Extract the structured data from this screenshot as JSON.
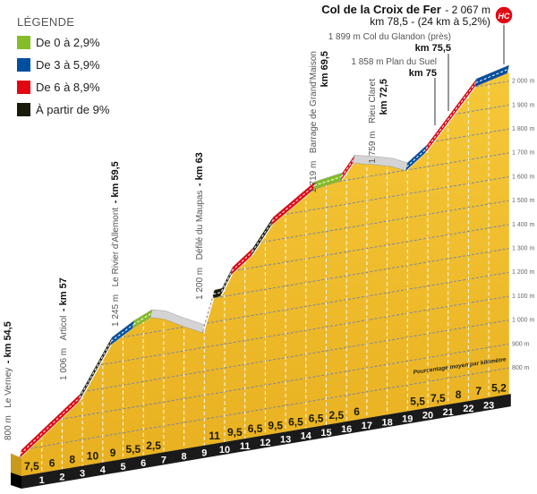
{
  "legend": {
    "title": "LÉGENDE",
    "items": [
      {
        "label": "De 0 à 2,9%",
        "color": "#84bd29"
      },
      {
        "label": "De 3 à 5,9%",
        "color": "#004f9f"
      },
      {
        "label": "De 6 à 8,9%",
        "color": "#e30613"
      },
      {
        "label": "À partir de 9%",
        "color": "#1a1a0a"
      }
    ]
  },
  "summit": {
    "name": "Col de la Croix de Fer",
    "altitude": " - 2 067 m",
    "detail": "km 78,5 - (24 km à 5,2%)",
    "category": "HC",
    "category_color": "#e30613"
  },
  "annotations": {
    "le_verney": {
      "alt": "800 m",
      "name": "Le Verney",
      "sep": " - ",
      "km": "km 54,5"
    },
    "articol": {
      "alt": "1 006 m",
      "name": "Articol",
      "sep": " - ",
      "km": "km 57"
    },
    "rivier": {
      "alt": "1 245 m",
      "name": "Le Rivier d'Allemont",
      "sep": " - ",
      "km": "km 59,5"
    },
    "maupas": {
      "alt": "1 200 m",
      "name": "Défilé du Maupas",
      "sep": " - ",
      "km": "km 63"
    },
    "grandmaison": {
      "alt": "1 719 m",
      "name": "Barrage de Grand'Maison",
      "km": "km 69,5"
    },
    "rieu_claret": {
      "alt": "1 759 m",
      "name": "Rieu Claret",
      "km": "km 72,5"
    },
    "plan_du_suel": {
      "text": "1 858 m Plan du Suel",
      "km": "km 75"
    },
    "glandon": {
      "text": "1 899 m Col du Glandon (près)",
      "km": "km 75,5"
    }
  },
  "footnote": "Pourcentage moyen par kilomètre",
  "chart_data": {
    "type": "area",
    "xlabel": "",
    "ylabel": "",
    "x_ticks": [
      "1",
      "2",
      "3",
      "4",
      "5",
      "6",
      "7",
      "8",
      "9",
      "10",
      "11",
      "12",
      "13",
      "14",
      "15",
      "16",
      "17",
      "18",
      "19",
      "20",
      "21",
      "22",
      "23"
    ],
    "altitude_ticks": [
      "800 m",
      "900 m",
      "1 000 m",
      "1 100 m",
      "1 200 m",
      "1 300 m",
      "1 400 m",
      "1 500 m",
      "1 600 m",
      "1 700 m",
      "1 800 m",
      "1 900 m",
      "2 000 m"
    ],
    "altitude_tick_values": [
      800,
      900,
      1000,
      1100,
      1200,
      1300,
      1400,
      1500,
      1600,
      1700,
      1800,
      1900,
      2000
    ],
    "km_range": [
      0,
      24
    ],
    "profile": [
      [
        0,
        800
      ],
      [
        2.9,
        993
      ],
      [
        4.45,
        1207
      ],
      [
        5.55,
        1262
      ],
      [
        6.43,
        1295
      ],
      [
        7.1,
        1280
      ],
      [
        7.97,
        1239
      ],
      [
        9,
        1195
      ],
      [
        9.5,
        1333
      ],
      [
        9.87,
        1335
      ],
      [
        10.4,
        1417
      ],
      [
        11.4,
        1482
      ],
      [
        12.38,
        1596
      ],
      [
        14.45,
        1716
      ],
      [
        15.8,
        1734
      ],
      [
        16.4,
        1799
      ],
      [
        17.45,
        1778
      ],
      [
        18.3,
        1758
      ],
      [
        19,
        1730
      ],
      [
        19.96,
        1791
      ],
      [
        22.4,
        2033
      ],
      [
        24,
        2067
      ]
    ],
    "gradient_segments": [
      {
        "from": 0,
        "to": 2.9,
        "class": "6-8.9"
      },
      {
        "from": 2.9,
        "to": 4.45,
        "class": "9+"
      },
      {
        "from": 4.45,
        "to": 5.55,
        "class": "3-5.9"
      },
      {
        "from": 5.55,
        "to": 6.43,
        "class": "0-2.9"
      },
      {
        "from": 6.43,
        "to": 9,
        "class": "descent"
      },
      {
        "from": 9,
        "to": 10.4,
        "class": "9+"
      },
      {
        "from": 10.4,
        "to": 11.4,
        "class": "6-8.9"
      },
      {
        "from": 11.4,
        "to": 12.38,
        "class": "9+"
      },
      {
        "from": 12.38,
        "to": 14.45,
        "class": "6-8.9"
      },
      {
        "from": 14.45,
        "to": 15.8,
        "class": "0-2.9"
      },
      {
        "from": 15.8,
        "to": 16.4,
        "class": "6-8.9"
      },
      {
        "from": 16.4,
        "to": 19,
        "class": "descent"
      },
      {
        "from": 19,
        "to": 19.96,
        "class": "3-5.9"
      },
      {
        "from": 19.96,
        "to": 22.4,
        "class": "6-8.9"
      },
      {
        "from": 22.4,
        "to": 24,
        "class": "3-5.9"
      }
    ],
    "class_colors": {
      "0-2.9": "#84bd29",
      "3-5.9": "#004f9f",
      "6-8.9": "#e30613",
      "9+": "#1a1a0a",
      "descent": "#d4d4d4"
    },
    "km_gradients": [
      "7,5",
      "6",
      "8",
      "10",
      "9",
      "5,5",
      "2,5",
      "",
      "",
      "11",
      "9,5",
      "6,5",
      "9,5",
      "6,5",
      "6,5",
      "2,5",
      "6",
      "",
      "",
      "5,5",
      "7,5",
      "8",
      "7",
      "5,2"
    ],
    "fill_color": "#f0bd2c",
    "grid": true
  }
}
